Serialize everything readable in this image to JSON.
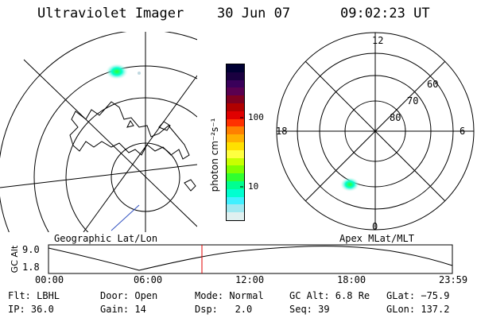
{
  "header": {
    "instrument": "Ultraviolet Imager",
    "date": "30 Jun 07",
    "time": "09:02:23 UT"
  },
  "geo_panel": {
    "label": "Geographic Lat/Lon"
  },
  "apex_panel": {
    "label": "Apex MLat/MLT",
    "mlt_labels": {
      "top": "12",
      "left": "18",
      "right": "6",
      "bottom": "0"
    },
    "lat_labels": [
      "60",
      "70",
      "80"
    ]
  },
  "colorbar": {
    "unit_label": "photon cm⁻²s⁻¹",
    "ticks": [
      "100",
      "10"
    ],
    "colors": [
      "#000033",
      "#1a0040",
      "#3a005a",
      "#5a0050",
      "#800020",
      "#b00000",
      "#e00000",
      "#ff3000",
      "#ff8000",
      "#ffb000",
      "#ffe000",
      "#ffff40",
      "#c8ff00",
      "#80ff00",
      "#30ff30",
      "#00ff90",
      "#00ffd0",
      "#40f0ff",
      "#a0e8f0",
      "#e0f0f0"
    ]
  },
  "altitude_plot": {
    "ylabel": "GC Alt",
    "yticks": [
      "9.0",
      "1.8"
    ],
    "xticks": [
      "00:00",
      "06:00",
      "12:00",
      "18:00",
      "23:59"
    ],
    "marker_color": "#e00000"
  },
  "info": {
    "row1": {
      "flt": "Flt: LBHL",
      "door": "Door: Open",
      "mode": "Mode: Normal",
      "gcalt": "GC Alt: 6.8 Re",
      "glat": "GLat: −75.9"
    },
    "row2": {
      "ip": "IP: 36.0",
      "gain": "Gain: 14",
      "dsp": "Dsp:   2.0",
      "seq": "Seq: 39",
      "glon": "GLon: 137.2"
    }
  }
}
